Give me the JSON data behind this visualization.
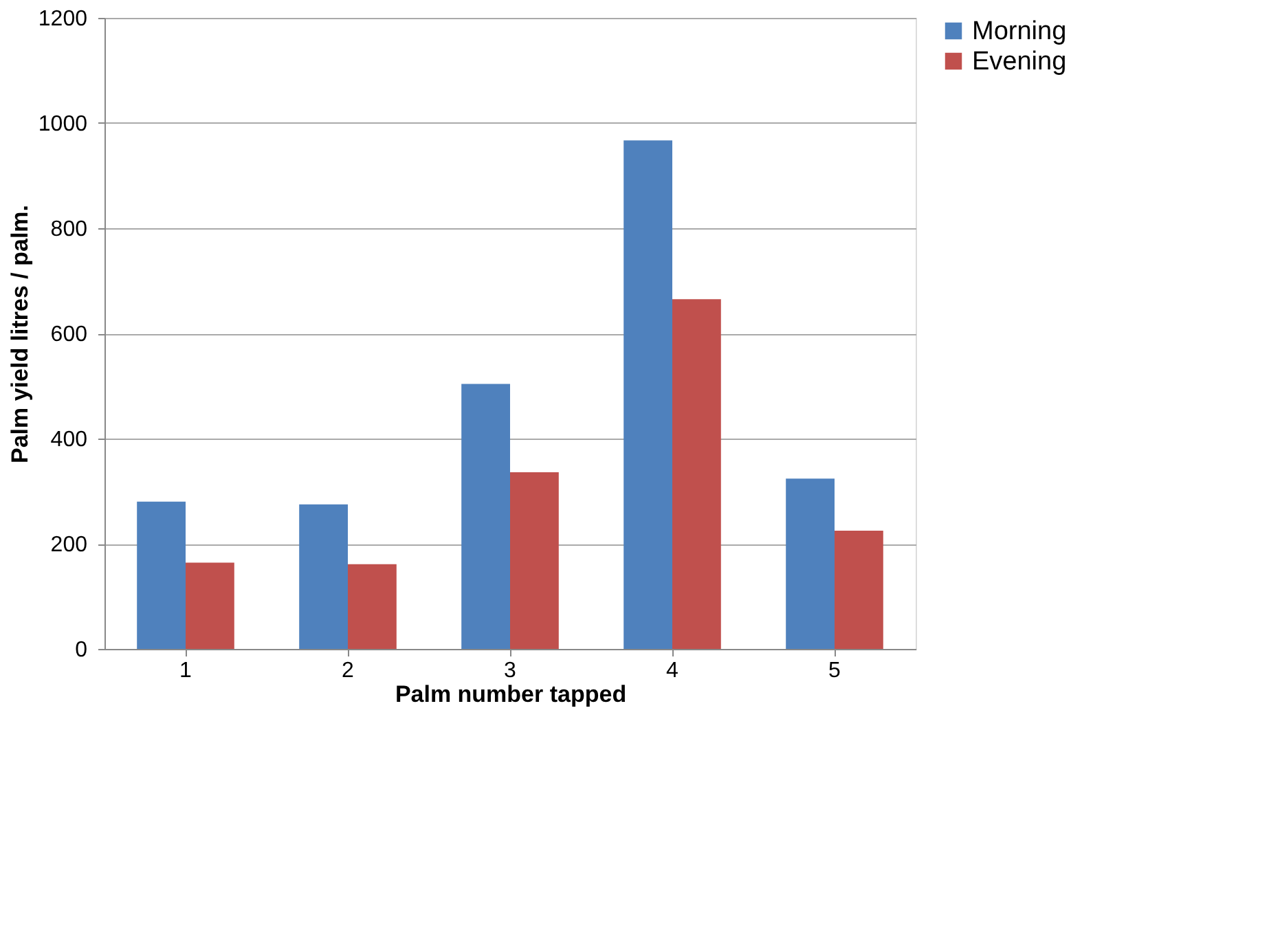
{
  "chart_data": {
    "type": "bar",
    "xlabel": "Palm number tapped",
    "ylabel": "Palm yield litres / palm.",
    "categories": [
      "1",
      "2",
      "3",
      "4",
      "5"
    ],
    "series": [
      {
        "name": "Morning",
        "color": "#4f81bd",
        "values": [
          280,
          275,
          504,
          967,
          324
        ]
      },
      {
        "name": "Evening",
        "color": "#c0504d",
        "values": [
          164,
          161,
          336,
          665,
          225
        ]
      }
    ],
    "ylim": [
      0,
      1200
    ],
    "yticks": [
      0,
      200,
      400,
      600,
      800,
      1000,
      1200
    ],
    "grid": "y",
    "legend": "right"
  }
}
